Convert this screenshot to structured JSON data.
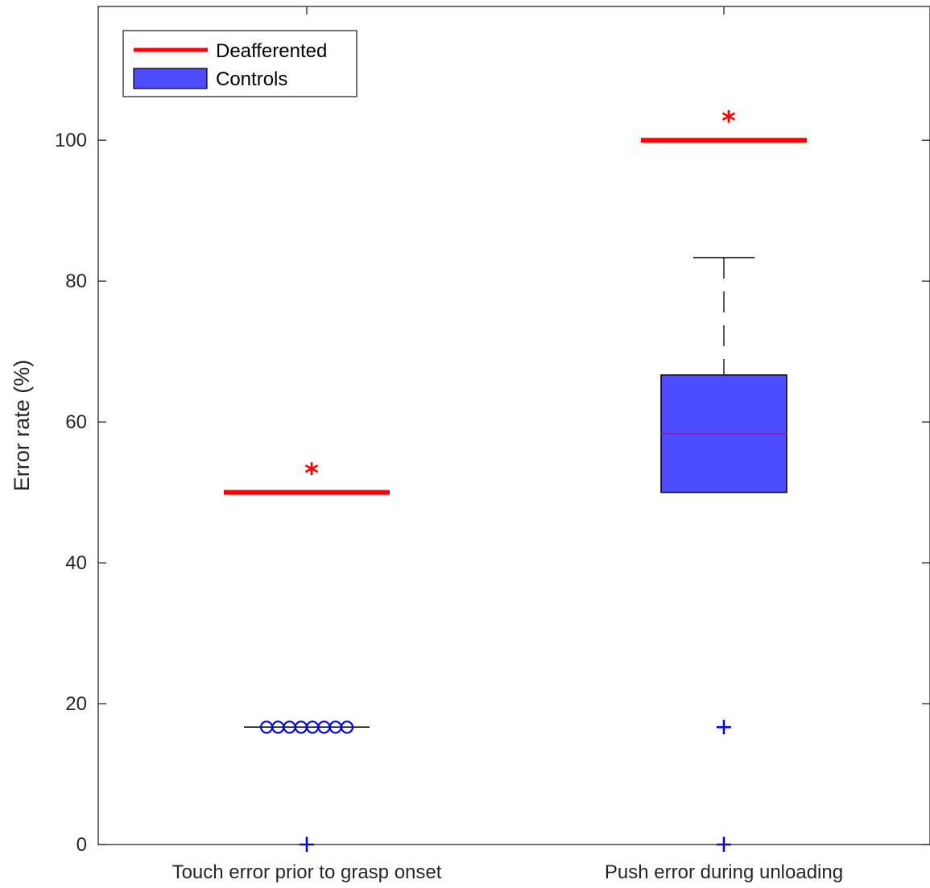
{
  "chart_data": {
    "type": "box",
    "ylabel": "Error rate (%)",
    "xlabel": "",
    "ylim": [
      0,
      119
    ],
    "yticks": [
      0,
      20,
      40,
      60,
      80,
      100
    ],
    "categories": [
      "Touch error prior to grasp onset",
      "Push error during unloading"
    ],
    "legend": {
      "position": "top-left",
      "entries": [
        {
          "label": "Deafferented",
          "color": "#ff0000",
          "symbol": "line"
        },
        {
          "label": "Controls",
          "color": "#4d4dff",
          "symbol": "box"
        }
      ]
    },
    "deafferented": {
      "name": "Deafferented",
      "values": [
        50,
        100
      ],
      "significance": [
        "*",
        "*"
      ],
      "color": "#ff0000"
    },
    "controls": {
      "name": "Controls",
      "color": "#4d4dff",
      "boxes": [
        {
          "category": "Touch error prior to grasp onset",
          "q1": 16.67,
          "median": 16.67,
          "q3": 16.67,
          "whisker_low": 16.67,
          "whisker_high": 16.67,
          "outliers_plus": [
            0
          ],
          "points_circle": [
            16.67,
            16.67,
            16.67,
            16.67,
            16.67,
            16.67,
            16.67,
            16.67
          ]
        },
        {
          "category": "Push error during unloading",
          "q1": 50,
          "median": 58.33,
          "q3": 66.67,
          "whisker_low": 50,
          "whisker_high": 83.33,
          "outliers_plus": [
            0,
            16.67
          ],
          "points_circle": []
        }
      ]
    }
  }
}
